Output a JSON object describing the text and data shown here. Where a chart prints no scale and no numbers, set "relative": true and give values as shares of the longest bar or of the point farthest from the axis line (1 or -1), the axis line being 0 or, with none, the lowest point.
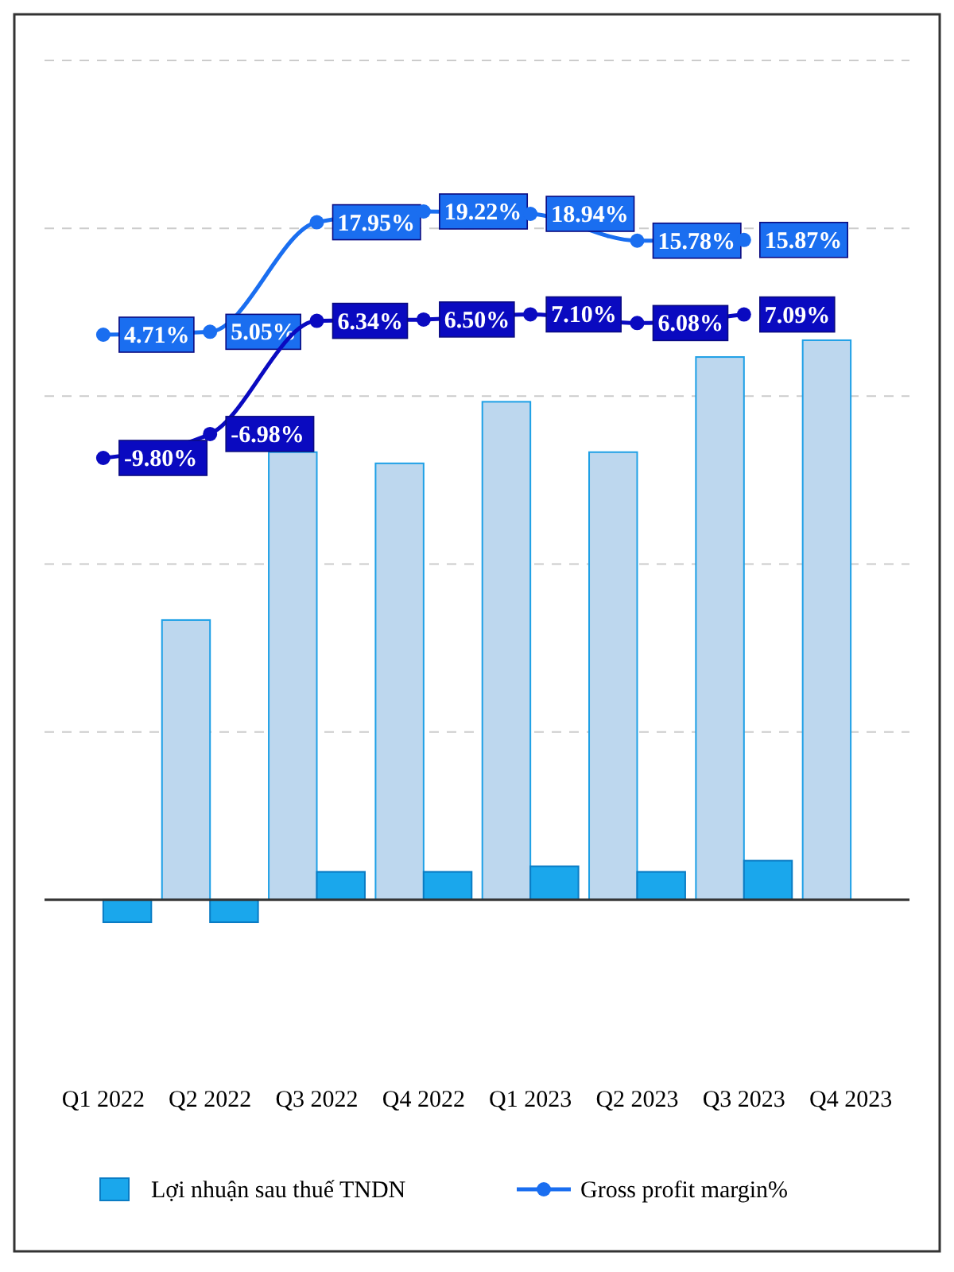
{
  "chart_data": [
    {
      "type": "bar",
      "relative": true,
      "categories": [
        "Q1 2022",
        "Q2 2022",
        "Q3 2022",
        "Q4 2022",
        "Q1 2023",
        "Q2 2023",
        "Q3 2023",
        "Q4 2023"
      ],
      "grid": "y",
      "legend": "bottom",
      "series": [
        {
          "color": "#bdd7ee",
          "values": [
            null,
            0.5,
            0.8,
            0.78,
            0.89,
            0.8,
            0.97,
            1
          ]
        },
        {
          "name": "Lợi nhuận sau thuế TNDN",
          "color": "#1aa7ec",
          "values": [
            -0.04,
            -0.04,
            0.05,
            0.05,
            0.06,
            0.05,
            0.07,
            null
          ]
        }
      ]
    },
    {
      "type": "line",
      "categories": [
        null,
        null,
        null,
        null,
        null,
        null,
        null,
        null
      ],
      "legend": "bottom",
      "marker": "circle",
      "line_style": "solid",
      "series": [
        {
          "name": "Gross profit margin%",
          "color": "#1a6ef0",
          "values": [
            4.71,
            5.05,
            17.95,
            19.22,
            18.94,
            15.78,
            15.87,
            null
          ],
          "value_labels": [
            "4.71%",
            "5.05%",
            "17.95%",
            "19.22%",
            "18.94%",
            "15.78%",
            "15.87%",
            null
          ]
        },
        {
          "color": "#0a0ac0",
          "values": [
            -9.8,
            -6.98,
            6.34,
            6.5,
            7.1,
            6.08,
            7.09,
            null
          ],
          "value_labels": [
            "-9.80%",
            "-6.98%",
            "6.34%",
            "6.50%",
            "7.10%",
            "6.08%",
            "7.09%",
            null
          ]
        }
      ]
    }
  ]
}
